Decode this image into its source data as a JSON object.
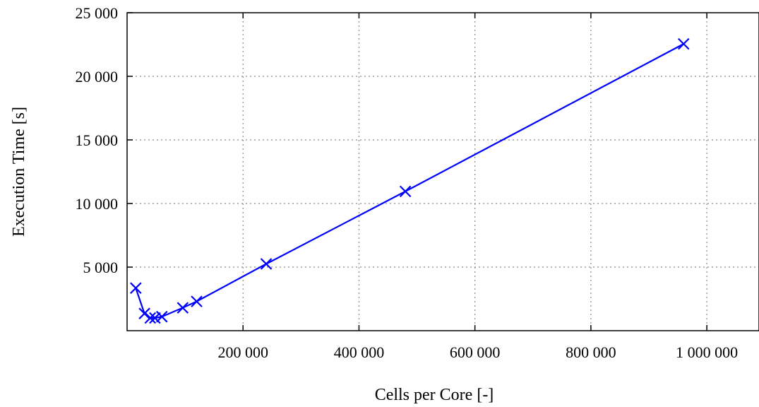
{
  "chart_data": {
    "type": "line",
    "title": "",
    "xlabel": "Cells per Core [-]",
    "ylabel": "Execution Time [s]",
    "xlim": [
      0,
      1090000
    ],
    "ylim": [
      0,
      25000
    ],
    "grid": true,
    "x_ticks": [
      200000,
      400000,
      600000,
      800000,
      1000000
    ],
    "x_tick_labels": [
      "200 000",
      "400 000",
      "600 000",
      "800 000",
      "1 000 000"
    ],
    "y_ticks": [
      5000,
      10000,
      15000,
      20000,
      25000
    ],
    "y_tick_labels": [
      "5 000",
      "10 000",
      "15 000",
      "20 000",
      "25 000"
    ],
    "series": [
      {
        "color": "#0000ff",
        "marker": "x",
        "points": [
          {
            "x": 15000,
            "y": 3350
          },
          {
            "x": 30000,
            "y": 1350
          },
          {
            "x": 40000,
            "y": 1000
          },
          {
            "x": 48000,
            "y": 1000
          },
          {
            "x": 60000,
            "y": 1100
          },
          {
            "x": 96000,
            "y": 1800
          },
          {
            "x": 120000,
            "y": 2300
          },
          {
            "x": 240000,
            "y": 5250
          },
          {
            "x": 480000,
            "y": 10950
          },
          {
            "x": 960000,
            "y": 22550
          }
        ]
      }
    ]
  }
}
